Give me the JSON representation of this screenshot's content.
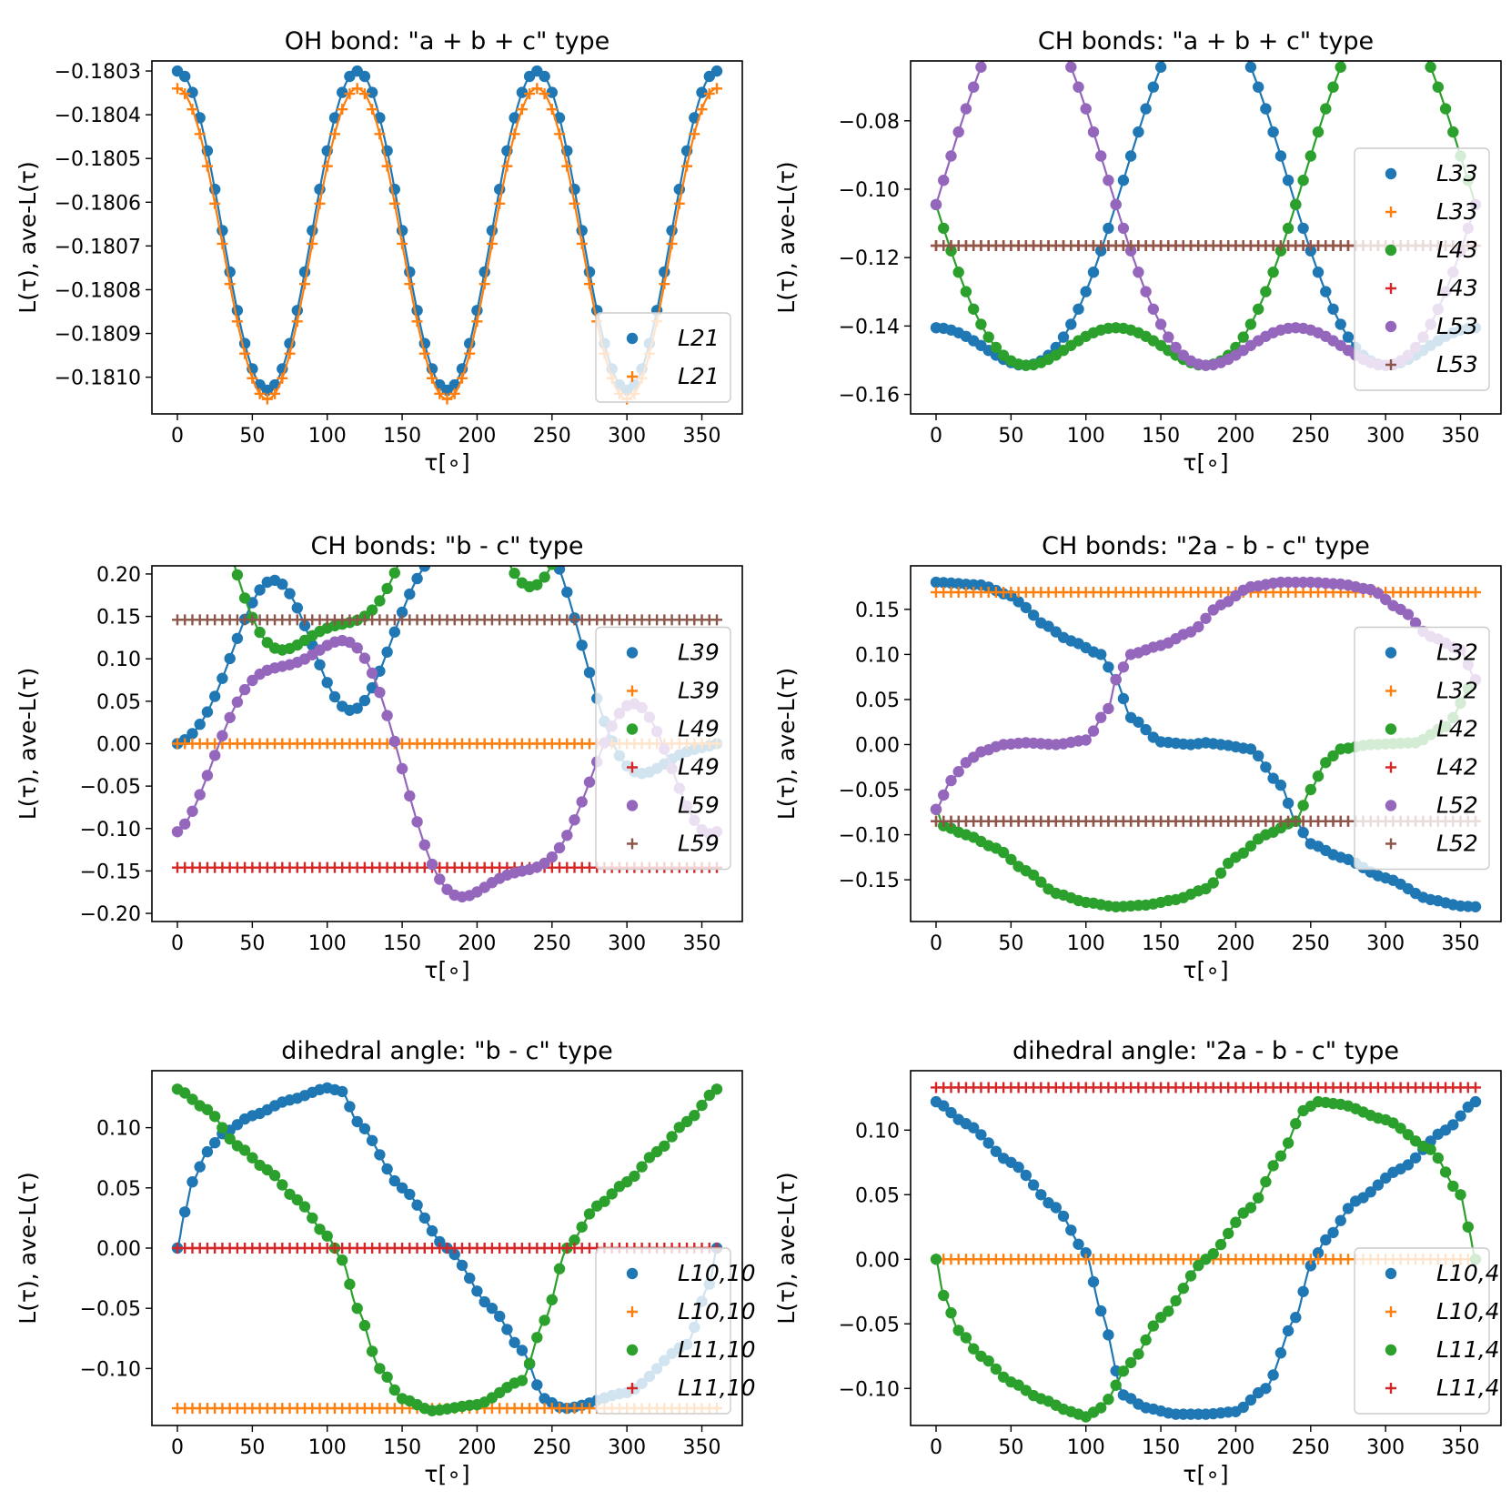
{
  "chart_data": [
    {
      "type": "line",
      "title": "OH bond: \"a + b + c\" type",
      "xlabel": "τ[∘]",
      "ylabel": "L(τ), ave-L(τ)",
      "xlim": [
        -17,
        377
      ],
      "ylim": [
        -0.181084,
        -0.180277
      ],
      "xticks": [
        0,
        50,
        100,
        150,
        200,
        250,
        300,
        350
      ],
      "xtick_labels": [
        "0",
        "50",
        "100",
        "150",
        "200",
        "250",
        "300",
        "350"
      ],
      "yticks": [
        -0.181,
        -0.1809,
        -0.1808,
        -0.1807,
        -0.1806,
        -0.1805,
        -0.1804,
        -0.1803
      ],
      "ytick_labels": [
        "−0.1810",
        "−0.1809",
        "−0.1808",
        "−0.1807",
        "−0.1806",
        "−0.1805",
        "−0.1804",
        "−0.1803"
      ],
      "legend_placement": "lower-right",
      "series": [
        {
          "name": "L21",
          "sub": "21",
          "color": "#1f77b4",
          "marker": "dot",
          "line": true,
          "kind": "cos",
          "params": {
            "c": -0.180665,
            "a": 0.000365,
            "k": 3,
            "phase": 0
          }
        },
        {
          "name": "L21",
          "sub": "21",
          "color": "#ff7f0e",
          "marker": "plus",
          "line": true,
          "kind": "cos",
          "params": {
            "c": -0.180695,
            "a": 0.000355,
            "k": 3,
            "phase": 0
          }
        }
      ]
    },
    {
      "type": "line",
      "title": "CH bonds: \"a + b + c\" type",
      "xlabel": "τ[∘]",
      "ylabel": "L(τ), ave-L(τ)",
      "xlim": [
        -17,
        377
      ],
      "ylim": [
        -0.1657,
        -0.0625
      ],
      "xticks": [
        0,
        50,
        100,
        150,
        200,
        250,
        300,
        350
      ],
      "xtick_labels": [
        "0",
        "50",
        "100",
        "150",
        "200",
        "250",
        "300",
        "350"
      ],
      "yticks": [
        -0.16,
        -0.14,
        -0.12,
        -0.1,
        -0.08
      ],
      "ytick_labels": [
        "−0.16",
        "−0.14",
        "−0.12",
        "−0.10",
        "−0.08"
      ],
      "legend_placement": "center-right",
      "series": [
        {
          "name": "L33",
          "sub": "33",
          "color": "#1f77b4",
          "marker": "dot",
          "line": true,
          "kind": "ch3",
          "params": {
            "c": -0.1165,
            "a": 0.047,
            "b": 0.023,
            "shift": 180
          }
        },
        {
          "name": "L33",
          "sub": "33",
          "color": "#ff7f0e",
          "marker": "plus",
          "line": false,
          "kind": "const",
          "params": {
            "c": -0.1165
          }
        },
        {
          "name": "L43",
          "sub": "43",
          "color": "#2ca02c",
          "marker": "dot",
          "line": true,
          "kind": "ch3",
          "params": {
            "c": -0.1165,
            "a": 0.047,
            "b": 0.023,
            "shift": 300
          }
        },
        {
          "name": "L43",
          "sub": "43",
          "color": "#d62728",
          "marker": "plus",
          "line": false,
          "kind": "const",
          "params": {
            "c": -0.1165
          }
        },
        {
          "name": "L53",
          "sub": "53",
          "color": "#9467bd",
          "marker": "dot",
          "line": true,
          "kind": "ch3",
          "params": {
            "c": -0.1165,
            "a": 0.047,
            "b": 0.023,
            "shift": 60
          }
        },
        {
          "name": "L53",
          "sub": "53",
          "color": "#8c564b",
          "marker": "plus",
          "line": false,
          "kind": "const",
          "params": {
            "c": -0.1165
          }
        }
      ]
    },
    {
      "type": "line",
      "title": "CH bonds: \"b - c\" type",
      "xlabel": "τ[∘]",
      "ylabel": "L(τ), ave-L(τ)",
      "xlim": [
        -17,
        377
      ],
      "ylim": [
        -0.2096,
        0.2096
      ],
      "xticks": [
        0,
        50,
        100,
        150,
        200,
        250,
        300,
        350
      ],
      "xtick_labels": [
        "0",
        "50",
        "100",
        "150",
        "200",
        "250",
        "300",
        "350"
      ],
      "yticks": [
        -0.2,
        -0.15,
        -0.1,
        -0.05,
        0,
        0.05,
        0.1,
        0.15,
        0.2
      ],
      "ytick_labels": [
        "−0.20",
        "−0.15",
        "−0.10",
        "−0.05",
        "0.00",
        "0.05",
        "0.10",
        "0.15",
        "0.20"
      ],
      "legend_placement": "center-right",
      "series": [
        {
          "name": "L39",
          "sub": "39",
          "color": "#1f77b4",
          "marker": "dot",
          "line": true,
          "kind": "bc",
          "params": {
            "shift": 0
          }
        },
        {
          "name": "L39",
          "sub": "39",
          "color": "#ff7f0e",
          "marker": "plus",
          "line": false,
          "kind": "const",
          "params": {
            "c": 0
          }
        },
        {
          "name": "L49",
          "sub": "49",
          "color": "#2ca02c",
          "marker": "dot",
          "line": true,
          "kind": "bc",
          "params": {
            "shift": 120
          }
        },
        {
          "name": "L49",
          "sub": "49",
          "color": "#d62728",
          "marker": "plus",
          "line": false,
          "kind": "const",
          "params": {
            "c": -0.146
          }
        },
        {
          "name": "L59",
          "sub": "59",
          "color": "#9467bd",
          "marker": "dot",
          "line": true,
          "kind": "bc",
          "params": {
            "shift": 240
          }
        },
        {
          "name": "L59",
          "sub": "59",
          "color": "#8c564b",
          "marker": "plus",
          "line": false,
          "kind": "const",
          "params": {
            "c": 0.146
          }
        }
      ]
    },
    {
      "type": "line",
      "title": "CH bonds: \"2a - b - c\" type",
      "xlabel": "τ[∘]",
      "ylabel": "L(τ), ave-L(τ)",
      "xlim": [
        -17,
        377
      ],
      "ylim": [
        -0.1963,
        0.1983
      ],
      "xticks": [
        0,
        50,
        100,
        150,
        200,
        250,
        300,
        350
      ],
      "xtick_labels": [
        "0",
        "50",
        "100",
        "150",
        "200",
        "250",
        "300",
        "350"
      ],
      "yticks": [
        -0.15,
        -0.1,
        -0.05,
        0,
        0.05,
        0.1,
        0.15
      ],
      "ytick_labels": [
        "−0.15",
        "−0.10",
        "−0.05",
        "0.00",
        "0.05",
        "0.10",
        "0.15"
      ],
      "legend_placement": "center-right",
      "series": [
        {
          "name": "L32",
          "sub": "32",
          "color": "#1f77b4",
          "marker": "dot",
          "line": true,
          "kind": "tab",
          "params": {
            "xs": [
              0,
              30,
              50,
              60,
              70,
              90,
              110,
              120,
              130,
              150,
              170,
              180,
              190,
              210,
              230,
              240,
              250,
              270,
              300,
              330,
              350,
              360
            ],
            "ys": [
              0.18,
              0.177,
              0.165,
              0.152,
              0.135,
              0.115,
              0.1,
              0.072,
              0.03,
              0.003,
              0.0,
              0.002,
              0.0,
              -0.005,
              -0.045,
              -0.085,
              -0.11,
              -0.125,
              -0.148,
              -0.172,
              -0.179,
              -0.18
            ]
          }
        },
        {
          "name": "L32",
          "sub": "32",
          "color": "#ff7f0e",
          "marker": "plus",
          "line": false,
          "kind": "const",
          "params": {
            "c": 0.169
          }
        },
        {
          "name": "L42",
          "sub": "42",
          "color": "#2ca02c",
          "marker": "dot",
          "line": true,
          "kind": "tab",
          "params": {
            "xs": [
              0,
              5,
              20,
              40,
              60,
              80,
              100,
              120,
              140,
              160,
              180,
              200,
              220,
              240,
              250,
              260,
              270,
              290,
              320,
              340,
              360
            ],
            "ys": [
              -0.072,
              -0.09,
              -0.1,
              -0.115,
              -0.14,
              -0.165,
              -0.175,
              -0.18,
              -0.178,
              -0.172,
              -0.16,
              -0.125,
              -0.1,
              -0.085,
              -0.05,
              -0.02,
              -0.005,
              0.0,
              0.002,
              0.02,
              0.072
            ]
          }
        },
        {
          "name": "L42",
          "sub": "42",
          "color": "#d62728",
          "marker": "plus",
          "line": false,
          "kind": "const",
          "params": {
            "c": -0.085
          }
        },
        {
          "name": "L52",
          "sub": "52",
          "color": "#9467bd",
          "marker": "dot",
          "line": true,
          "kind": "tab",
          "params": {
            "xs": [
              0,
              10,
              20,
              30,
              45,
              60,
              80,
              100,
              115,
              120,
              130,
              150,
              170,
              190,
              210,
              230,
              250,
              270,
              290,
              310,
              330,
              350,
              360
            ],
            "ys": [
              -0.072,
              -0.04,
              -0.02,
              -0.008,
              0.0,
              0.002,
              0.0,
              0.005,
              0.04,
              0.072,
              0.1,
              0.11,
              0.125,
              0.155,
              0.175,
              0.18,
              0.18,
              0.178,
              0.172,
              0.15,
              0.12,
              0.105,
              0.072
            ]
          }
        },
        {
          "name": "L52",
          "sub": "52",
          "color": "#8c564b",
          "marker": "plus",
          "line": false,
          "kind": "const",
          "params": {
            "c": -0.085
          }
        }
      ]
    },
    {
      "type": "line",
      "title": "dihedral angle: \"b - c\" type",
      "xlabel": "τ[∘]",
      "ylabel": "L(τ), ave-L(τ)",
      "xlim": [
        -17,
        377
      ],
      "ylim": [
        -0.1473,
        0.1473
      ],
      "xticks": [
        0,
        50,
        100,
        150,
        200,
        250,
        300,
        350
      ],
      "xtick_labels": [
        "0",
        "50",
        "100",
        "150",
        "200",
        "250",
        "300",
        "350"
      ],
      "yticks": [
        -0.1,
        -0.05,
        0,
        0.05,
        0.1
      ],
      "ytick_labels": [
        "−0.10",
        "−0.05",
        "0.00",
        "0.05",
        "0.10"
      ],
      "legend_placement": "lower-right",
      "series": [
        {
          "name": "L10,10",
          "sub": "10, 10",
          "color": "#1f77b4",
          "marker": "dot",
          "line": true,
          "kind": "tab",
          "params": {
            "xs": [
              0,
              5,
              10,
              20,
              30,
              50,
              75,
              100,
              110,
              120,
              150,
              180,
              210,
              230,
              245,
              255,
              260,
              300,
              340,
              355,
              360
            ],
            "ys": [
              0.0,
              0.03,
              0.055,
              0.08,
              0.095,
              0.11,
              0.123,
              0.133,
              0.13,
              0.105,
              0.05,
              0.0,
              -0.05,
              -0.085,
              -0.125,
              -0.132,
              -0.133,
              -0.12,
              -0.08,
              -0.03,
              0.0
            ]
          }
        },
        {
          "name": "L10,10",
          "sub": "10, 10",
          "color": "#ff7f0e",
          "marker": "plus",
          "line": false,
          "kind": "const",
          "params": {
            "c": -0.133
          }
        },
        {
          "name": "L11,10",
          "sub": "11, 10",
          "color": "#2ca02c",
          "marker": "dot",
          "line": true,
          "kind": "tab",
          "params": {
            "xs": [
              0,
              20,
              40,
              60,
              80,
              100,
              110,
              120,
              135,
              150,
              170,
              200,
              230,
              245,
              260,
              280,
              300,
              320,
              340,
              360
            ],
            "ys": [
              0.132,
              0.115,
              0.085,
              0.065,
              0.04,
              0.01,
              -0.01,
              -0.05,
              -0.1,
              -0.125,
              -0.135,
              -0.13,
              -0.11,
              -0.06,
              0.0,
              0.035,
              0.055,
              0.08,
              0.105,
              0.132
            ]
          }
        },
        {
          "name": "L11,10",
          "sub": "11, 10",
          "color": "#d62728",
          "marker": "plus",
          "line": false,
          "kind": "const",
          "params": {
            "c": 0
          }
        }
      ]
    },
    {
      "type": "line",
      "title": "dihedral angle: \"2a - b - c\" type",
      "xlabel": "τ[∘]",
      "ylabel": "L(τ), ave-L(τ)",
      "xlim": [
        -17,
        377
      ],
      "ylim": [
        -0.1287,
        0.146
      ],
      "xticks": [
        0,
        50,
        100,
        150,
        200,
        250,
        300,
        350
      ],
      "xtick_labels": [
        "0",
        "50",
        "100",
        "150",
        "200",
        "250",
        "300",
        "350"
      ],
      "yticks": [
        -0.1,
        -0.05,
        0,
        0.05,
        0.1
      ],
      "ytick_labels": [
        "−0.10",
        "−0.05",
        "0.00",
        "0.05",
        "0.10"
      ],
      "legend_placement": "lower-right",
      "series": [
        {
          "name": "L10,4",
          "sub": "10, 4",
          "color": "#1f77b4",
          "marker": "dot",
          "line": true,
          "kind": "tab",
          "params": {
            "xs": [
              0,
              20,
              50,
              80,
              100,
              110,
              125,
              140,
              160,
              180,
              200,
              220,
              240,
              250,
              260,
              280,
              310,
              340,
              360
            ],
            "ys": [
              0.122,
              0.105,
              0.075,
              0.04,
              0.005,
              -0.04,
              -0.105,
              -0.115,
              -0.12,
              -0.12,
              -0.118,
              -0.1,
              -0.045,
              -0.005,
              0.015,
              0.045,
              0.07,
              0.1,
              0.122
            ]
          }
        },
        {
          "name": "L10,4",
          "sub": "10, 4",
          "color": "#ff7f0e",
          "marker": "plus",
          "line": false,
          "kind": "const",
          "params": {
            "c": 0
          }
        },
        {
          "name": "L11,4",
          "sub": "11, 4",
          "color": "#2ca02c",
          "marker": "dot",
          "line": true,
          "kind": "tab",
          "params": {
            "xs": [
              0,
              5,
              15,
              30,
              50,
              70,
              90,
              100,
              110,
              130,
              150,
              180,
              210,
              230,
              245,
              255,
              270,
              300,
              330,
              350,
              355,
              360
            ],
            "ys": [
              0.0,
              -0.028,
              -0.055,
              -0.075,
              -0.095,
              -0.108,
              -0.118,
              -0.122,
              -0.115,
              -0.08,
              -0.045,
              0.0,
              0.04,
              0.08,
              0.115,
              0.122,
              0.12,
              0.108,
              0.085,
              0.05,
              0.025,
              0.0
            ]
          }
        },
        {
          "name": "L11,4",
          "sub": "11, 4",
          "color": "#d62728",
          "marker": "plus",
          "line": false,
          "kind": "const",
          "params": {
            "c": 0.133
          }
        }
      ]
    }
  ]
}
